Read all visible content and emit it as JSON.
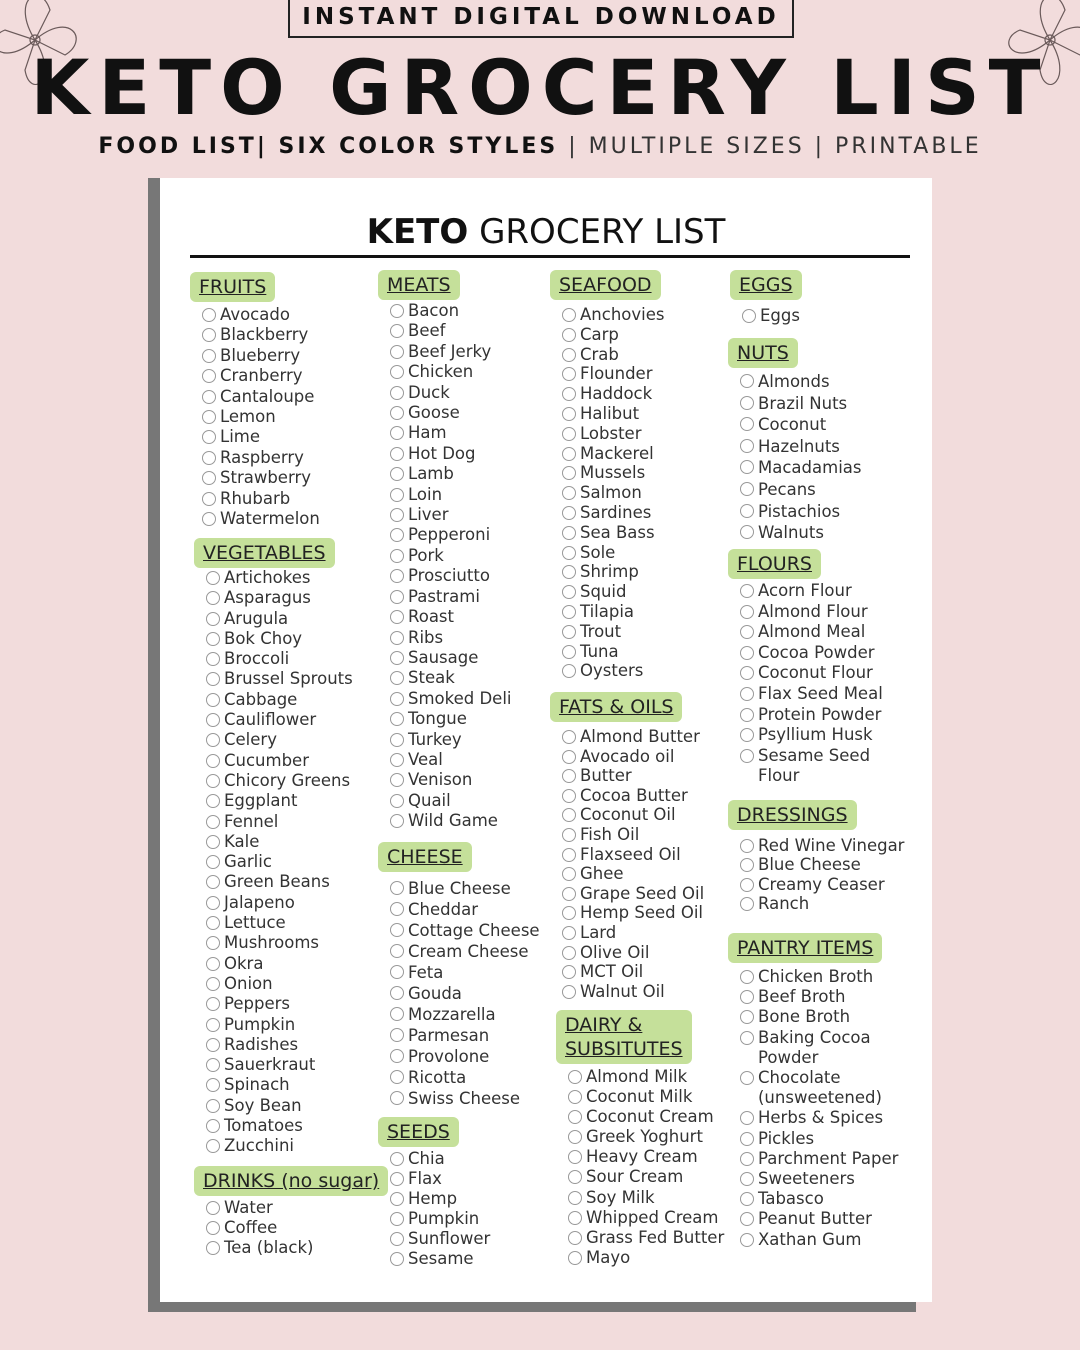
{
  "banner": {
    "badge": "INSTANT DIGITAL DOWNLOAD",
    "title": "KETO GROCERY LIST",
    "subtitle_bold": "FOOD LIST| SIX COLOR STYLES",
    "subtitle_light": " | MULTIPLE SIZES | PRINTABLE"
  },
  "colors": {
    "background": "#f2dcdc",
    "header_pill": "#c5e09a",
    "paper": "#ffffff",
    "shadow": "#777777"
  },
  "document": {
    "title_bold": "KETO",
    "title_rest": " GROCERY LIST",
    "sections": [
      {
        "title": "FRUITS",
        "items": [
          "Avocado",
          "Blackberry",
          "Blueberry",
          "Cranberry",
          "Cantaloupe",
          "Lemon",
          "Lime",
          "Raspberry",
          "Strawberry",
          "Rhubarb",
          "Watermelon"
        ]
      },
      {
        "title": "VEGETABLES",
        "items": [
          "Artichokes",
          "Asparagus",
          "Arugula",
          "Bok Choy",
          "Broccoli",
          "Brussel Sprouts",
          "Cabbage",
          "Cauliflower",
          "Celery",
          "Cucumber",
          "Chicory Greens",
          "Eggplant",
          "Fennel",
          "Kale",
          "Garlic",
          "Green Beans",
          "Jalapeno",
          "Lettuce",
          "Mushrooms",
          "Okra",
          "Onion",
          "Peppers",
          "Pumpkin",
          "Radishes",
          "Sauerkraut",
          "Spinach",
          "Soy Bean",
          "Tomatoes",
          "Zucchini"
        ]
      },
      {
        "title": "DRINKS (no sugar)",
        "items": [
          "Water",
          "Coffee",
          "Tea (black)"
        ]
      },
      {
        "title": "MEATS",
        "items": [
          "Bacon",
          "Beef",
          "Beef Jerky",
          "Chicken",
          "Duck",
          "Goose",
          "Ham",
          "Hot Dog",
          "Lamb",
          "Loin",
          "Liver",
          "Pepperoni",
          "Pork",
          "Prosciutto",
          "Pastrami",
          "Roast",
          "Ribs",
          "Sausage",
          "Steak",
          "Smoked Deli",
          "Tongue",
          "Turkey",
          "Veal",
          "Venison",
          "Quail",
          "Wild Game"
        ]
      },
      {
        "title": "CHEESE",
        "items": [
          "Blue Cheese",
          "Cheddar",
          "Cottage Cheese",
          "Cream Cheese",
          "Feta",
          "Gouda",
          "Mozzarella",
          "Parmesan",
          "Provolone",
          "Ricotta",
          "Swiss Cheese"
        ]
      },
      {
        "title": "SEEDS",
        "items": [
          "Chia",
          "Flax",
          "Hemp",
          "Pumpkin",
          "Sunflower",
          "Sesame"
        ]
      },
      {
        "title": "SEAFOOD",
        "items": [
          "Anchovies",
          "Carp",
          "Crab",
          "Flounder",
          "Haddock",
          "Halibut",
          "Lobster",
          "Mackerel",
          "Mussels",
          "Salmon",
          "Sardines",
          "Sea Bass",
          "Sole",
          "Shrimp",
          "Squid",
          "Tilapia",
          "Trout",
          "Tuna",
          "Oysters"
        ]
      },
      {
        "title": "FATS & OILS",
        "items": [
          "Almond Butter",
          "Avocado oil",
          "Butter",
          "Cocoa Butter",
          "Coconut Oil",
          "Fish Oil",
          "Flaxseed Oil",
          "Ghee",
          "Grape Seed Oil",
          "Hemp Seed Oil",
          "Lard",
          "Olive Oil",
          "MCT Oil",
          "Walnut Oil"
        ]
      },
      {
        "title": "DAIRY &\nSUBSITUTES",
        "items": [
          "Almond Milk",
          "Coconut Milk",
          "Coconut Cream",
          "Greek Yoghurt",
          "Heavy Cream",
          "Sour Cream",
          "Soy Milk",
          "Whipped Cream",
          "Grass Fed Butter",
          "Mayo"
        ]
      },
      {
        "title": "EGGS",
        "items": [
          "Eggs"
        ]
      },
      {
        "title": "NUTS",
        "items": [
          "Almonds",
          "Brazil Nuts",
          "Coconut",
          "Hazelnuts",
          "Macadamias",
          "Pecans",
          "Pistachios",
          "Walnuts"
        ]
      },
      {
        "title": "FLOURS",
        "items": [
          "Acorn Flour",
          "Almond Flour",
          "Almond Meal",
          "Cocoa Powder",
          "Coconut Flour",
          "Flax Seed Meal",
          "Protein Powder",
          "Psyllium Husk",
          "Sesame Seed\nFlour"
        ]
      },
      {
        "title": "DRESSINGS",
        "items": [
          "Red Wine Vinegar",
          "Blue Cheese",
          "Creamy Ceaser",
          "Ranch"
        ]
      },
      {
        "title": "PANTRY ITEMS",
        "items": [
          "Chicken Broth",
          "Beef Broth",
          "Bone Broth",
          "Baking Cocoa\nPowder",
          "Chocolate\n(unsweetened)",
          "Herbs & Spices",
          "Pickles",
          "Parchment Paper",
          "Sweeteners",
          "Tabasco",
          "Peanut Butter",
          "Xathan Gum"
        ]
      }
    ]
  }
}
